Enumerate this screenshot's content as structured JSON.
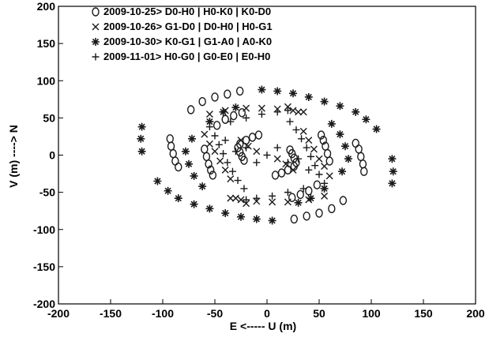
{
  "chart_data": {
    "type": "scatter",
    "title": "",
    "xlabel": "E <----- U (m)",
    "ylabel": "V (m) ----> N",
    "xlim": [
      -200,
      200
    ],
    "ylim": [
      -200,
      200
    ],
    "xticks": [
      -200,
      -150,
      -100,
      -50,
      0,
      50,
      100,
      150,
      200
    ],
    "yticks": [
      -200,
      -150,
      -100,
      -50,
      0,
      50,
      100,
      150,
      200
    ],
    "grid": false,
    "legend_position": "top-left",
    "marker_color": "#1a1a1a",
    "series": [
      {
        "name": "2009-10-25>   D0-H0 | H0-K0 | K0-D0",
        "marker": "circle",
        "points": [
          [
            -93,
            22
          ],
          [
            -92,
            12
          ],
          [
            -90,
            2
          ],
          [
            -88,
            -8
          ],
          [
            -85,
            -16
          ],
          [
            -73,
            61
          ],
          [
            -62,
            72
          ],
          [
            -50,
            78
          ],
          [
            -38,
            82
          ],
          [
            -26,
            86
          ],
          [
            -60,
            8
          ],
          [
            -58,
            -2
          ],
          [
            -56,
            -12
          ],
          [
            -54,
            -20
          ],
          [
            -52,
            -27
          ],
          [
            -48,
            40
          ],
          [
            -40,
            48
          ],
          [
            -32,
            53
          ],
          [
            -24,
            57
          ],
          [
            -28,
            10
          ],
          [
            -26,
            4
          ],
          [
            -24,
            -2
          ],
          [
            -22,
            -7
          ],
          [
            -26,
            15
          ],
          [
            -20,
            20
          ],
          [
            -14,
            24
          ],
          [
            -8,
            27
          ],
          [
            93,
            -22
          ],
          [
            92,
            -12
          ],
          [
            90,
            -2
          ],
          [
            88,
            8
          ],
          [
            85,
            16
          ],
          [
            73,
            -61
          ],
          [
            62,
            -72
          ],
          [
            50,
            -78
          ],
          [
            38,
            -82
          ],
          [
            26,
            -86
          ],
          [
            60,
            -8
          ],
          [
            58,
            2
          ],
          [
            56,
            12
          ],
          [
            54,
            20
          ],
          [
            52,
            27
          ],
          [
            48,
            -40
          ],
          [
            40,
            -48
          ],
          [
            32,
            -53
          ],
          [
            24,
            -57
          ],
          [
            28,
            -10
          ],
          [
            26,
            -4
          ],
          [
            24,
            2
          ],
          [
            22,
            7
          ],
          [
            26,
            -15
          ],
          [
            20,
            -20
          ],
          [
            14,
            -24
          ],
          [
            8,
            -27
          ]
        ]
      },
      {
        "name": "2009-10-26>   G1-D0 | D0-H0 | H0-G1",
        "marker": "x",
        "points": [
          [
            -55,
            55
          ],
          [
            -40,
            60
          ],
          [
            -20,
            63
          ],
          [
            -5,
            63
          ],
          [
            10,
            62
          ],
          [
            25,
            60
          ],
          [
            35,
            58
          ],
          [
            55,
            -55
          ],
          [
            40,
            -60
          ],
          [
            20,
            -63
          ],
          [
            5,
            -63
          ],
          [
            -10,
            -62
          ],
          [
            -25,
            -60
          ],
          [
            -35,
            -58
          ],
          [
            -60,
            28
          ],
          [
            -55,
            15
          ],
          [
            -50,
            5
          ],
          [
            -45,
            -8
          ],
          [
            -40,
            -20
          ],
          [
            -35,
            -32
          ],
          [
            60,
            -28
          ],
          [
            55,
            -15
          ],
          [
            50,
            -5
          ],
          [
            45,
            8
          ],
          [
            40,
            20
          ],
          [
            35,
            32
          ],
          [
            -20,
            -65
          ],
          [
            -30,
            -58
          ],
          [
            20,
            65
          ],
          [
            30,
            58
          ],
          [
            -25,
            20
          ],
          [
            -18,
            12
          ],
          [
            -10,
            5
          ],
          [
            25,
            -20
          ],
          [
            18,
            -12
          ],
          [
            10,
            -5
          ]
        ]
      },
      {
        "name": "2009-10-30>   K0-G1 | G1-A0 | A0-K0",
        "marker": "star",
        "points": [
          [
            -120,
            38
          ],
          [
            -121,
            22
          ],
          [
            -120,
            5
          ],
          [
            -105,
            -35
          ],
          [
            -95,
            -48
          ],
          [
            -85,
            -58
          ],
          [
            -70,
            -66
          ],
          [
            -55,
            -72
          ],
          [
            -40,
            -78
          ],
          [
            -25,
            -83
          ],
          [
            -10,
            -86
          ],
          [
            5,
            -88
          ],
          [
            120,
            -38
          ],
          [
            121,
            -22
          ],
          [
            120,
            -5
          ],
          [
            105,
            35
          ],
          [
            95,
            48
          ],
          [
            85,
            58
          ],
          [
            70,
            66
          ],
          [
            55,
            72
          ],
          [
            40,
            78
          ],
          [
            25,
            83
          ],
          [
            10,
            86
          ],
          [
            -5,
            88
          ],
          [
            -72,
            22
          ],
          [
            -78,
            5
          ],
          [
            -75,
            -12
          ],
          [
            -70,
            -28
          ],
          [
            -62,
            -42
          ],
          [
            72,
            -22
          ],
          [
            78,
            -5
          ],
          [
            75,
            12
          ],
          [
            70,
            28
          ],
          [
            62,
            42
          ],
          [
            -55,
            45
          ],
          [
            -42,
            58
          ],
          [
            -30,
            64
          ],
          [
            55,
            -45
          ],
          [
            42,
            -58
          ],
          [
            30,
            -64
          ]
        ]
      },
      {
        "name": "2009-11-01>   H0-G0 | G0-E0 | E0-H0",
        "marker": "plus",
        "points": [
          [
            -55,
            38
          ],
          [
            -50,
            26
          ],
          [
            -46,
            14
          ],
          [
            -42,
            2
          ],
          [
            -38,
            -10
          ],
          [
            -33,
            -22
          ],
          [
            -28,
            -34
          ],
          [
            -22,
            -45
          ],
          [
            55,
            -38
          ],
          [
            50,
            -26
          ],
          [
            46,
            -14
          ],
          [
            42,
            -2
          ],
          [
            38,
            10
          ],
          [
            33,
            22
          ],
          [
            28,
            34
          ],
          [
            22,
            45
          ],
          [
            -35,
            45
          ],
          [
            -20,
            50
          ],
          [
            -5,
            55
          ],
          [
            10,
            58
          ],
          [
            20,
            60
          ],
          [
            35,
            -45
          ],
          [
            20,
            -50
          ],
          [
            5,
            -55
          ],
          [
            -10,
            -58
          ],
          [
            -20,
            -60
          ],
          [
            -30,
            5
          ],
          [
            -20,
            10
          ],
          [
            30,
            -5
          ],
          [
            20,
            -10
          ],
          [
            0,
            0
          ],
          [
            10,
            10
          ],
          [
            -10,
            -10
          ],
          [
            40,
            -20
          ],
          [
            -40,
            20
          ]
        ]
      }
    ]
  }
}
